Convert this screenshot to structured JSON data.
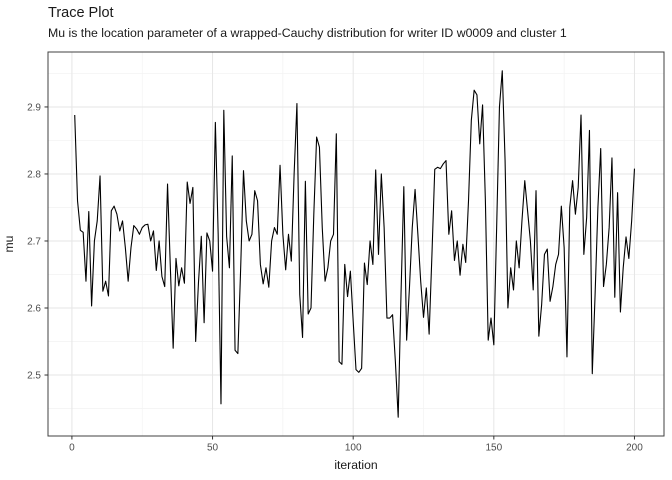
{
  "header": {
    "title": "Trace Plot",
    "subtitle": "Mu is the location parameter of a wrapped-Cauchy distribution for writer ID w0009 and cluster 1"
  },
  "chart_data": {
    "type": "line",
    "title": "Trace Plot",
    "subtitle": "Mu is the location parameter of a wrapped-Cauchy distribution for writer ID w0009 and cluster 1",
    "xlabel": "iteration",
    "ylabel": "mu",
    "legend": "none",
    "grid": true,
    "x_start": 1,
    "x_step": 1,
    "x_ticks": [
      0,
      50,
      100,
      150,
      200
    ],
    "x_tick_labels": [
      "0",
      "50",
      "100",
      "150",
      "200"
    ],
    "x_minor_ticks": [
      25,
      75,
      125,
      175
    ],
    "y_ticks": [
      2.5,
      2.6,
      2.7,
      2.8,
      2.9
    ],
    "y_tick_labels": [
      "2.5",
      "2.6",
      "2.7",
      "2.8",
      "2.9"
    ],
    "y_minor_ticks": [
      2.45,
      2.55,
      2.65,
      2.75,
      2.85,
      2.95
    ],
    "xlim": [
      -8.5,
      210.5
    ],
    "ylim": [
      2.409,
      2.982
    ],
    "line_color": "#000000",
    "colors": {
      "background": "#ffffff",
      "panel_background": "#ffffff",
      "grid_major": "#e6e6e6",
      "grid_minor": "#f2f2f2",
      "panel_border": "#404040",
      "tick": "#333333",
      "tick_label": "#4d4d4d",
      "text": "#1a1a1a"
    },
    "values": [
      2.888,
      2.76,
      2.716,
      2.713,
      2.64,
      2.744,
      2.603,
      2.7,
      2.73,
      2.797,
      2.625,
      2.64,
      2.618,
      2.745,
      2.752,
      2.74,
      2.715,
      2.73,
      2.69,
      2.64,
      2.69,
      2.723,
      2.718,
      2.71,
      2.72,
      2.724,
      2.725,
      2.7,
      2.715,
      2.656,
      2.7,
      2.647,
      2.632,
      2.785,
      2.66,
      2.54,
      2.674,
      2.633,
      2.66,
      2.637,
      2.788,
      2.756,
      2.78,
      2.55,
      2.638,
      2.707,
      2.578,
      2.712,
      2.7,
      2.655,
      2.877,
      2.71,
      2.457,
      2.895,
      2.707,
      2.66,
      2.827,
      2.537,
      2.532,
      2.66,
      2.805,
      2.73,
      2.7,
      2.71,
      2.775,
      2.76,
      2.665,
      2.636,
      2.66,
      2.631,
      2.7,
      2.72,
      2.71,
      2.813,
      2.71,
      2.657,
      2.71,
      2.67,
      2.8,
      2.905,
      2.62,
      2.556,
      2.789,
      2.591,
      2.6,
      2.74,
      2.855,
      2.84,
      2.72,
      2.64,
      2.66,
      2.7,
      2.71,
      2.86,
      2.52,
      2.516,
      2.665,
      2.617,
      2.655,
      2.58,
      2.508,
      2.504,
      2.51,
      2.667,
      2.635,
      2.7,
      2.665,
      2.806,
      2.68,
      2.8,
      2.72,
      2.585,
      2.585,
      2.59,
      2.52,
      2.437,
      2.62,
      2.781,
      2.552,
      2.63,
      2.72,
      2.777,
      2.71,
      2.64,
      2.586,
      2.63,
      2.561,
      2.68,
      2.807,
      2.81,
      2.808,
      2.815,
      2.82,
      2.71,
      2.745,
      2.671,
      2.7,
      2.649,
      2.695,
      2.668,
      2.76,
      2.88,
      2.925,
      2.918,
      2.845,
      2.903,
      2.76,
      2.552,
      2.585,
      2.545,
      2.72,
      2.9,
      2.954,
      2.82,
      2.6,
      2.66,
      2.627,
      2.7,
      2.66,
      2.73,
      2.79,
      2.745,
      2.7,
      2.627,
      2.775,
      2.558,
      2.605,
      2.68,
      2.688,
      2.61,
      2.632,
      2.665,
      2.68,
      2.752,
      2.69,
      2.527,
      2.75,
      2.79,
      2.74,
      2.78,
      2.888,
      2.68,
      2.735,
      2.865,
      2.502,
      2.62,
      2.75,
      2.838,
      2.632,
      2.665,
      2.72,
      2.824,
      2.616,
      2.772,
      2.594,
      2.66,
      2.706,
      2.674,
      2.73,
      2.808
    ]
  }
}
